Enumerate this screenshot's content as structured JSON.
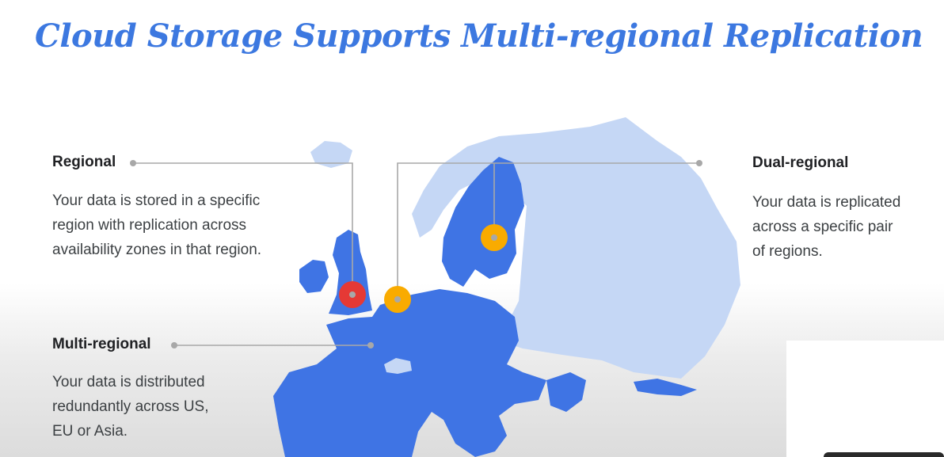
{
  "slide": {
    "title": "Cloud Storage Supports Multi-regional Replication"
  },
  "regional": {
    "heading": "Regional",
    "desc_lines": [
      "Your data is stored in a specific",
      "region with replication across",
      "availability zones in that region."
    ]
  },
  "multi_regional": {
    "heading": "Multi-regional",
    "desc_lines": [
      "Your data is distributed",
      "redundantly across US,",
      "EU or Asia."
    ]
  },
  "dual_regional": {
    "heading": "Dual-regional",
    "desc_lines": [
      "Your data is replicated",
      "across a specific pair",
      "of regions."
    ]
  },
  "colors": {
    "title": "#3c78e0",
    "eu_blue": "#3f74e4",
    "light_blue": "#c5d7f5",
    "regional_marker": "#e53935",
    "dual_marker": "#f9ab00",
    "connector": "#a8a8a8"
  }
}
